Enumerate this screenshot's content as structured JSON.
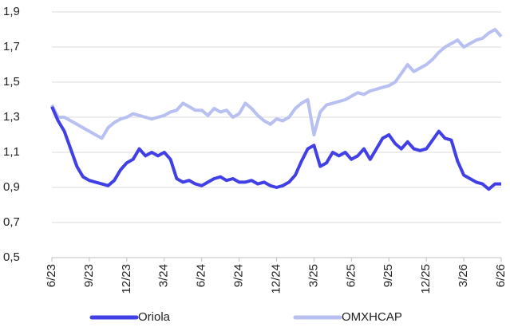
{
  "chart_data": {
    "type": "line",
    "categories": [
      "6/23",
      null,
      null,
      null,
      null,
      null,
      "9/23",
      null,
      null,
      null,
      null,
      null,
      "12/23",
      null,
      null,
      null,
      null,
      null,
      "3/24",
      null,
      null,
      null,
      null,
      null,
      "6/24",
      null,
      null,
      null,
      null,
      null,
      "9/24",
      null,
      null,
      null,
      null,
      null,
      "12/24",
      null,
      null,
      null,
      null,
      null,
      "3/25",
      null,
      null,
      null,
      null,
      null,
      "6/25",
      null,
      null,
      null,
      null,
      null,
      "9/25",
      null,
      null,
      null,
      null,
      null,
      "12/25",
      null,
      null,
      null,
      null,
      null,
      "3/26",
      null,
      null,
      null,
      null,
      null,
      "6/26"
    ],
    "series": [
      {
        "name": "Oriola",
        "color": "#4040e6",
        "values": [
          1.36,
          1.28,
          1.22,
          1.12,
          1.02,
          0.96,
          0.94,
          0.93,
          0.92,
          0.91,
          0.94,
          1.0,
          1.04,
          1.06,
          1.12,
          1.08,
          1.1,
          1.08,
          1.1,
          1.06,
          0.95,
          0.93,
          0.94,
          0.92,
          0.91,
          0.93,
          0.95,
          0.96,
          0.94,
          0.95,
          0.93,
          0.93,
          0.94,
          0.92,
          0.93,
          0.91,
          0.9,
          0.91,
          0.93,
          0.97,
          1.05,
          1.12,
          1.14,
          1.02,
          1.04,
          1.1,
          1.08,
          1.1,
          1.06,
          1.08,
          1.12,
          1.06,
          1.12,
          1.18,
          1.2,
          1.15,
          1.12,
          1.16,
          1.12,
          1.11,
          1.12,
          1.17,
          1.22,
          1.18,
          1.17,
          1.05,
          0.97,
          0.95,
          0.93,
          0.92,
          0.89,
          0.92,
          0.92
        ]
      },
      {
        "name": "OMXHCAP",
        "color": "#b8c0f2",
        "values": [
          1.37,
          1.3,
          1.3,
          1.28,
          1.26,
          1.24,
          1.22,
          1.2,
          1.18,
          1.24,
          1.27,
          1.29,
          1.3,
          1.32,
          1.31,
          1.3,
          1.29,
          1.3,
          1.31,
          1.33,
          1.34,
          1.38,
          1.36,
          1.34,
          1.34,
          1.31,
          1.35,
          1.33,
          1.34,
          1.3,
          1.32,
          1.38,
          1.35,
          1.31,
          1.28,
          1.26,
          1.29,
          1.28,
          1.3,
          1.35,
          1.38,
          1.4,
          1.2,
          1.33,
          1.37,
          1.38,
          1.39,
          1.4,
          1.42,
          1.44,
          1.43,
          1.45,
          1.46,
          1.47,
          1.48,
          1.5,
          1.55,
          1.6,
          1.56,
          1.58,
          1.6,
          1.63,
          1.67,
          1.7,
          1.72,
          1.74,
          1.7,
          1.72,
          1.74,
          1.75,
          1.78,
          1.8,
          1.76
        ]
      }
    ],
    "ylim": [
      0.5,
      1.9
    ],
    "yticks": [
      {
        "value": 0.5,
        "label": "0,5"
      },
      {
        "value": 0.7,
        "label": "0,7"
      },
      {
        "value": 0.9,
        "label": "0,9"
      },
      {
        "value": 1.1,
        "label": "1,1"
      },
      {
        "value": 1.3,
        "label": "1,3"
      },
      {
        "value": 1.5,
        "label": "1,5"
      },
      {
        "value": 1.7,
        "label": "1,7"
      },
      {
        "value": 1.9,
        "label": "1,9"
      }
    ],
    "grid": true,
    "legend": "bottom"
  }
}
